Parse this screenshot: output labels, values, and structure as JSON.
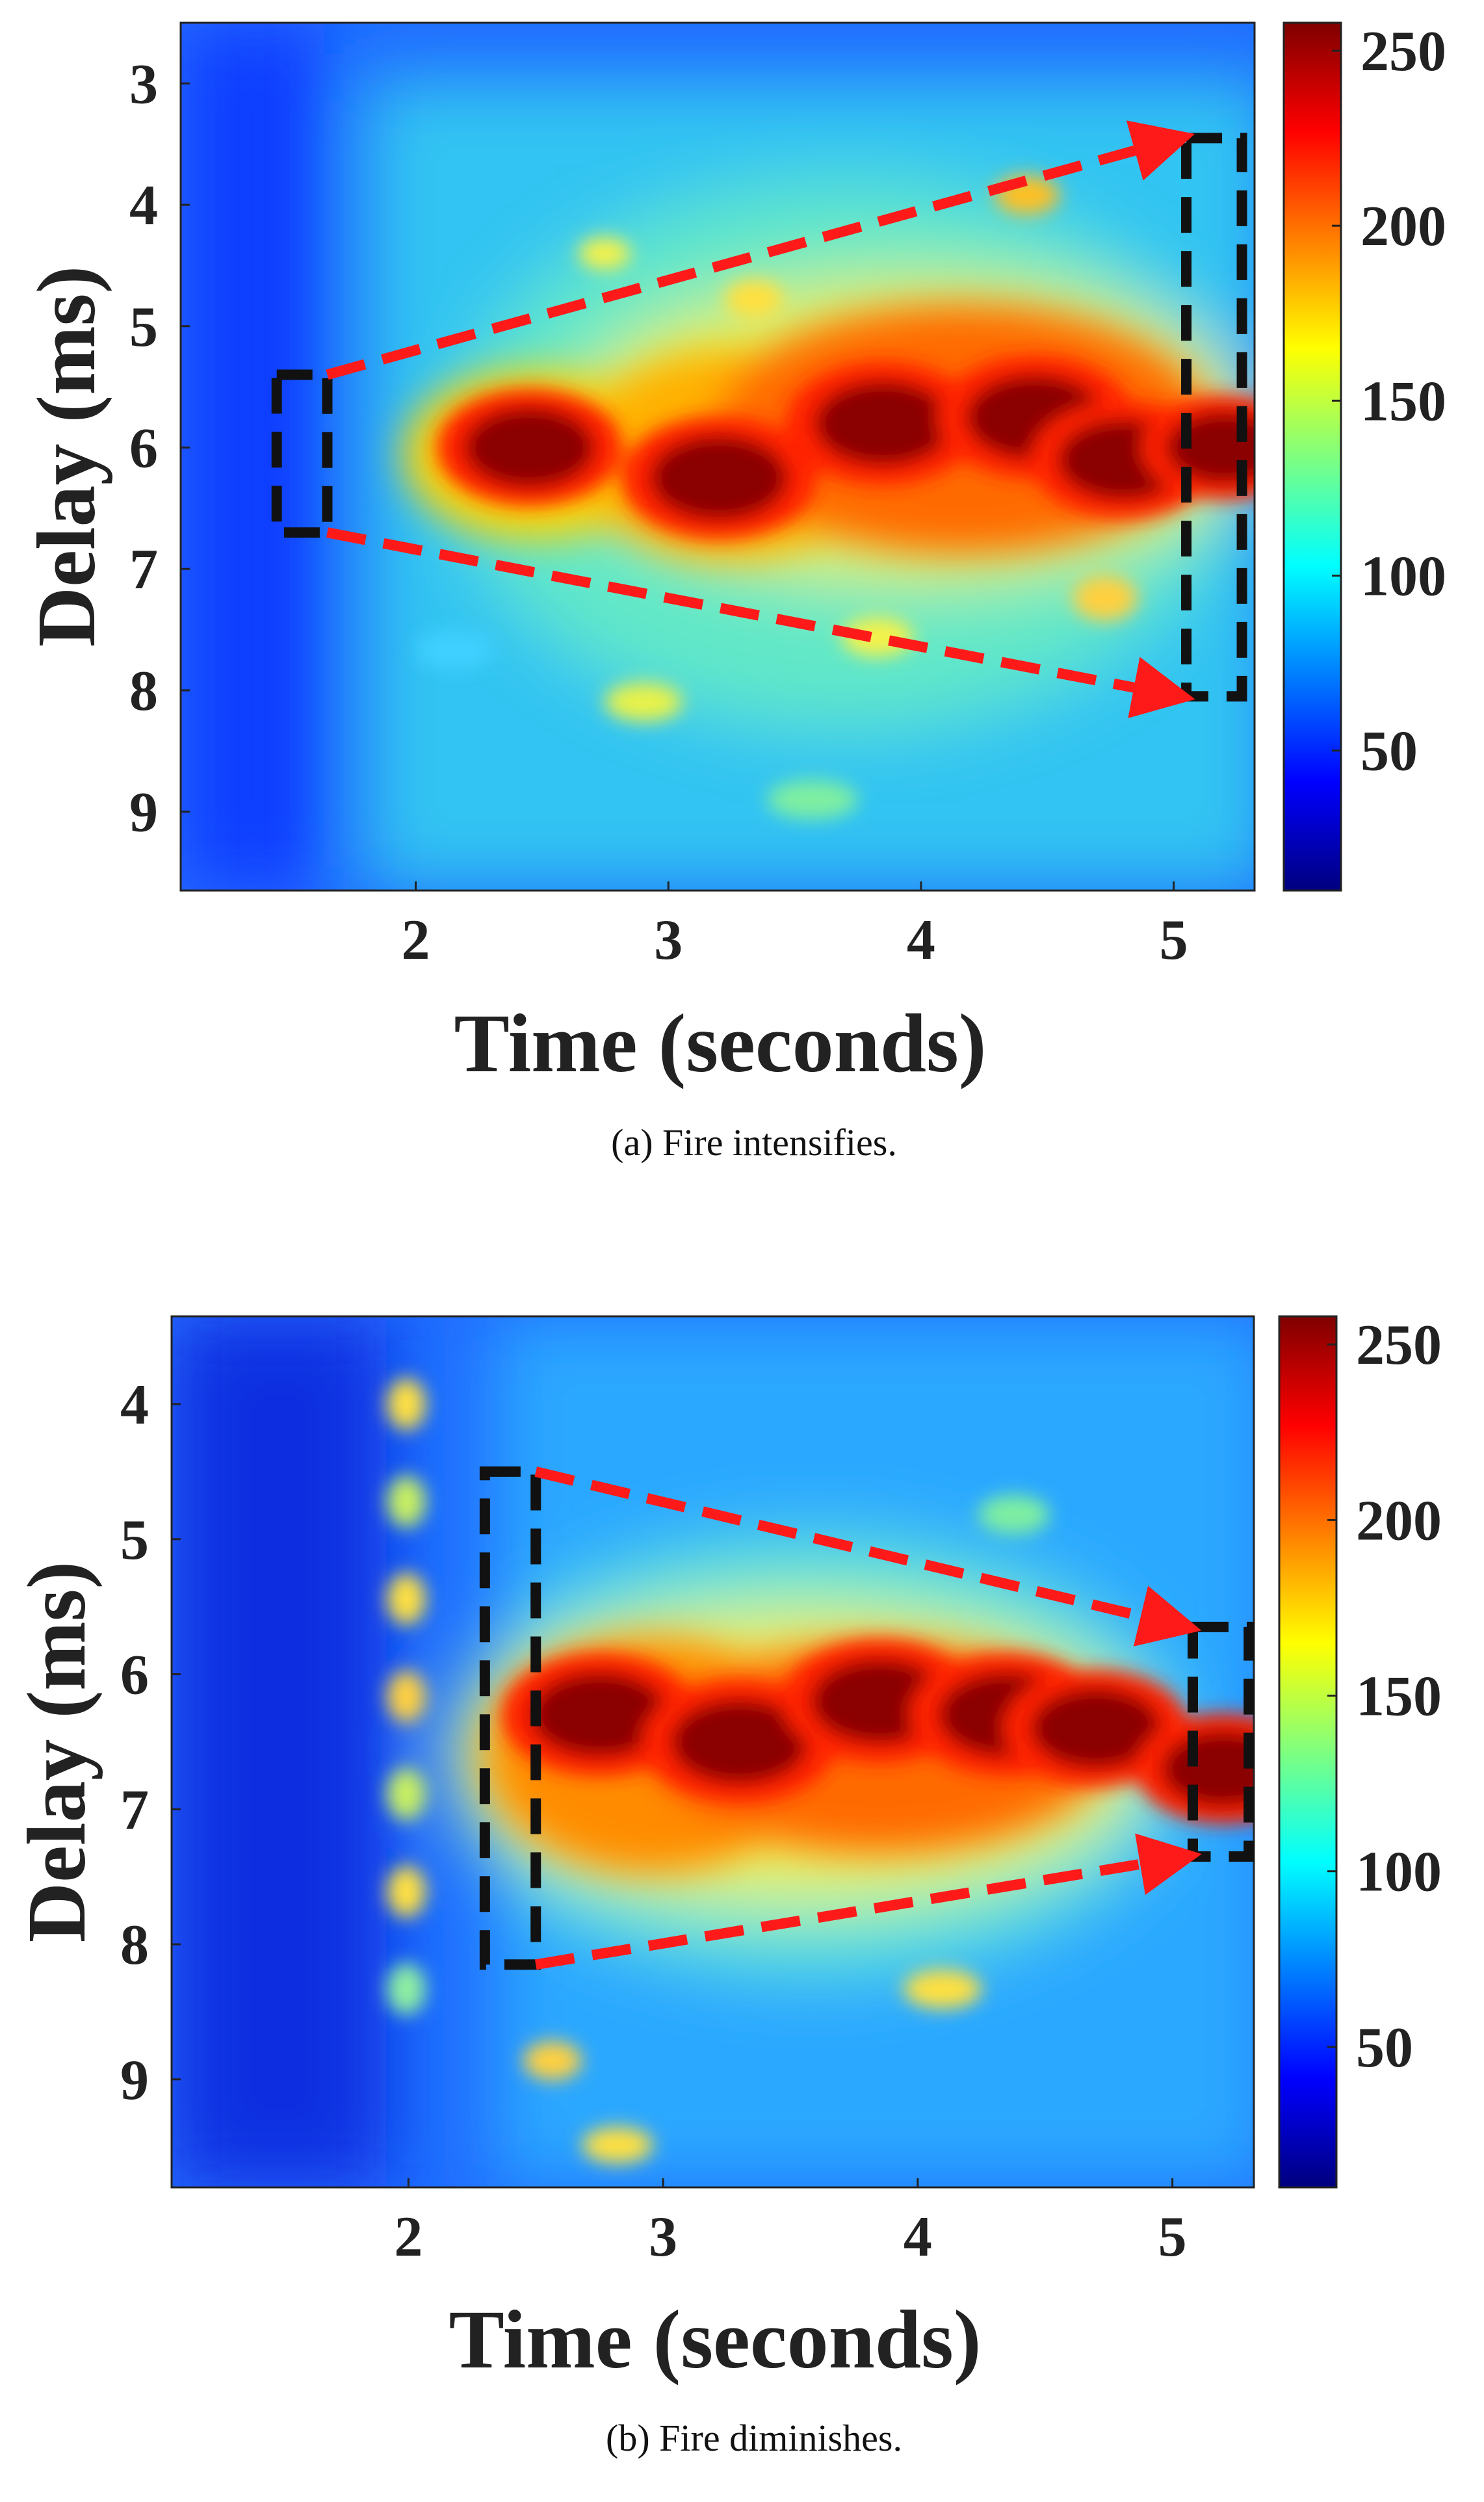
{
  "chart_data": [
    {
      "type": "heatmap",
      "caption": "(a)  Fire intensifies.",
      "xlabel": "Time (seconds)",
      "ylabel": "Delay (ms)",
      "xlim": [
        1.07,
        5.32
      ],
      "ylim": [
        2.5,
        9.65
      ],
      "xticks": [
        2,
        3,
        4,
        5
      ],
      "yticks": [
        3,
        4,
        5,
        6,
        7,
        8,
        9
      ],
      "colorbar": {
        "min": 10,
        "max": 258,
        "ticks": [
          50,
          100,
          150,
          200,
          250
        ]
      },
      "hot_regions": [
        {
          "t": 2.45,
          "d": 6.0,
          "intensity": 0.95
        },
        {
          "t": 3.2,
          "d": 6.25,
          "intensity": 1.0
        },
        {
          "t": 3.85,
          "d": 5.8,
          "intensity": 1.0
        },
        {
          "t": 4.45,
          "d": 5.75,
          "intensity": 1.0
        },
        {
          "t": 4.8,
          "d": 6.1,
          "intensity": 0.95
        },
        {
          "t": 5.2,
          "d": 6.0,
          "intensity": 0.85
        }
      ],
      "annotations": {
        "start_box": {
          "t0": 1.45,
          "t1": 1.65,
          "d0": 5.4,
          "d1": 6.7
        },
        "end_box": {
          "t0": 5.05,
          "t1": 5.27,
          "d0": 3.45,
          "d1": 8.05
        },
        "arrows": [
          {
            "from": [
              1.65,
              5.4
            ],
            "to": [
              5.05,
              3.45
            ]
          },
          {
            "from": [
              1.65,
              6.7
            ],
            "to": [
              5.05,
              8.05
            ]
          }
        ]
      }
    },
    {
      "type": "heatmap",
      "caption": "(b)  Fire diminishes.",
      "xlabel": "Time (seconds)",
      "ylabel": "Delay (ms)",
      "xlim": [
        1.07,
        5.32
      ],
      "ylim": [
        3.35,
        9.8
      ],
      "xticks": [
        2,
        3,
        4,
        5
      ],
      "yticks": [
        4,
        5,
        6,
        7,
        8,
        9
      ],
      "colorbar": {
        "min": 10,
        "max": 258,
        "ticks": [
          50,
          100,
          150,
          200,
          250
        ]
      },
      "hot_regions": [
        {
          "t": 2.75,
          "d": 6.3,
          "intensity": 1.0
        },
        {
          "t": 3.3,
          "d": 6.5,
          "intensity": 1.0
        },
        {
          "t": 3.85,
          "d": 6.2,
          "intensity": 1.0
        },
        {
          "t": 4.35,
          "d": 6.3,
          "intensity": 1.0
        },
        {
          "t": 4.7,
          "d": 6.4,
          "intensity": 0.95
        },
        {
          "t": 5.2,
          "d": 6.7,
          "intensity": 0.9
        }
      ],
      "annotations": {
        "start_box": {
          "t0": 2.3,
          "t1": 2.5,
          "d0": 4.5,
          "d1": 8.15
        },
        "end_box": {
          "t0": 5.08,
          "t1": 5.3,
          "d0": 5.65,
          "d1": 7.35
        },
        "arrows": [
          {
            "from": [
              2.5,
              4.5
            ],
            "to": [
              5.08,
              5.65
            ]
          },
          {
            "from": [
              2.5,
              8.15
            ],
            "to": [
              5.08,
              7.35
            ]
          }
        ]
      }
    }
  ],
  "colors": {
    "annotation_box": "#111111",
    "arrow": "#ff1a1a",
    "text": "#222222"
  }
}
